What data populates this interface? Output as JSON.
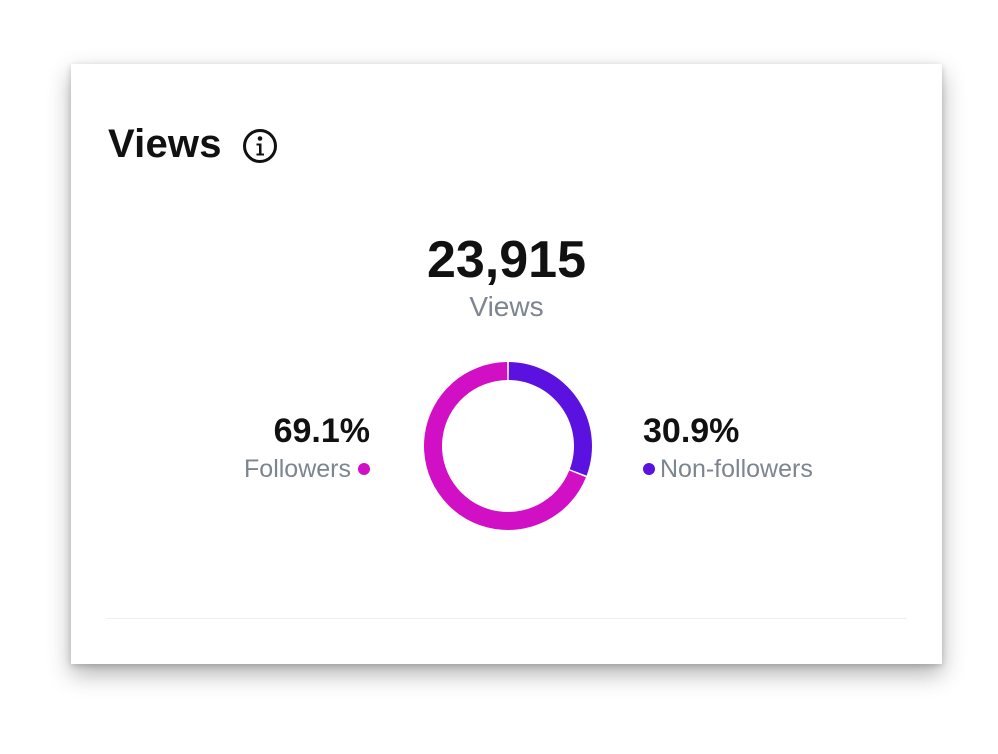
{
  "card": {
    "title": "Views",
    "info_icon": "info-icon"
  },
  "summary": {
    "total": "23,915",
    "label": "Views"
  },
  "breakdown": {
    "followers": {
      "percent_text": "69.1%",
      "label": "Followers",
      "color": "#d10fc5"
    },
    "non_followers": {
      "percent_text": "30.9%",
      "label": "Non-followers",
      "color": "#5b12e0"
    }
  },
  "chart_data": {
    "type": "pie",
    "categories": [
      "Followers",
      "Non-followers"
    ],
    "values": [
      69.1,
      30.9
    ],
    "colors": [
      "#d10fc5",
      "#5b12e0"
    ],
    "title": "",
    "donut": true
  }
}
